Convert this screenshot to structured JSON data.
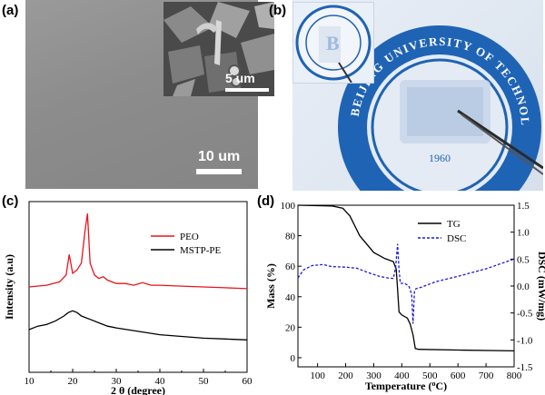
{
  "panels": {
    "a": {
      "label": "(a)",
      "inset_scale": "5 um",
      "main_scale": "10 um"
    },
    "b": {
      "label": "(b)",
      "seal_text": "BEIJING UNIVERSITY OF TECHNOLOGY",
      "seal_year": "1960",
      "seal_letter": "B"
    },
    "c": {
      "label": "(c)"
    },
    "d": {
      "label": "(d)"
    }
  },
  "chart_data": [
    {
      "type": "line",
      "panel": "c",
      "xlabel": "2 θ (degree)",
      "ylabel": "Intensity (a.u)",
      "xlim": [
        10,
        60
      ],
      "xticks": [
        10,
        20,
        30,
        40,
        50,
        60
      ],
      "series": [
        {
          "name": "PEO",
          "color": "#e8141b",
          "x": [
            10,
            14,
            17,
            18.5,
            19.2,
            20.0,
            21.0,
            22.0,
            22.8,
            23.4,
            24.0,
            25.0,
            26.0,
            27.0,
            28.0,
            30.0,
            32.0,
            34.0,
            36.0,
            38.0,
            40.0,
            45.0,
            50.0,
            55.0,
            60.0
          ],
          "y": [
            0.5,
            0.51,
            0.53,
            0.57,
            0.69,
            0.58,
            0.6,
            0.64,
            0.82,
            0.93,
            0.64,
            0.57,
            0.55,
            0.56,
            0.54,
            0.52,
            0.52,
            0.51,
            0.525,
            0.51,
            0.51,
            0.505,
            0.5,
            0.495,
            0.49
          ]
        },
        {
          "name": "MSTP-PE",
          "color": "#000000",
          "x": [
            10,
            12,
            14,
            16,
            18,
            19,
            20,
            21,
            22,
            24,
            26,
            28,
            30,
            35,
            40,
            45,
            50,
            55,
            60
          ],
          "y": [
            0.25,
            0.27,
            0.28,
            0.3,
            0.33,
            0.35,
            0.36,
            0.35,
            0.33,
            0.31,
            0.29,
            0.27,
            0.26,
            0.24,
            0.22,
            0.21,
            0.2,
            0.195,
            0.19
          ]
        }
      ]
    },
    {
      "type": "line",
      "panel": "d",
      "xlabel": "Temperature (",
      "xlabel_sup": "o",
      "xlabel_end": "C)",
      "ylabel": "Mass (%)",
      "y2label": "DSC (mW/mg)",
      "xlim": [
        30,
        800
      ],
      "ylim": [
        -6,
        100
      ],
      "y2lim": [
        -1.5,
        1.5
      ],
      "xticks": [
        100,
        200,
        300,
        400,
        500,
        600,
        700,
        800
      ],
      "yticks": [
        0,
        20,
        40,
        60,
        80,
        100
      ],
      "y2ticks": [
        -1.5,
        -1.0,
        -0.5,
        0.0,
        0.5,
        1.0,
        1.5
      ],
      "y2ticklabels": [
        "-1.5",
        "-1.0",
        "-0.5",
        "0.0",
        "0.5",
        "1.0",
        "1.5"
      ],
      "series": [
        {
          "name": "TG",
          "axis": "left",
          "style": "solid",
          "color": "#000000",
          "x": [
            30,
            150,
            190,
            215,
            250,
            300,
            340,
            370,
            380,
            385,
            390,
            400,
            420,
            430,
            440,
            448,
            460,
            600,
            800
          ],
          "y": [
            100,
            99.5,
            98,
            93,
            80,
            69,
            65,
            63,
            58,
            45,
            30,
            28,
            26,
            22,
            15,
            6,
            5.5,
            5,
            4.5
          ]
        },
        {
          "name": "DSC",
          "axis": "right",
          "style": "dashed",
          "color": "#1a1adc",
          "x": [
            30,
            50,
            80,
            120,
            150,
            200,
            240,
            280,
            320,
            350,
            370,
            378,
            385,
            390,
            395,
            410,
            425,
            435,
            440,
            445,
            450,
            470,
            520,
            600,
            700,
            800
          ],
          "y": [
            0.15,
            0.3,
            0.38,
            0.4,
            0.36,
            0.35,
            0.33,
            0.25,
            0.18,
            0.15,
            0.14,
            0.35,
            0.78,
            0.3,
            0.05,
            0.05,
            0.0,
            -0.15,
            -0.7,
            -0.1,
            -0.05,
            -0.02,
            0.08,
            0.18,
            0.32,
            0.5
          ]
        }
      ]
    }
  ]
}
